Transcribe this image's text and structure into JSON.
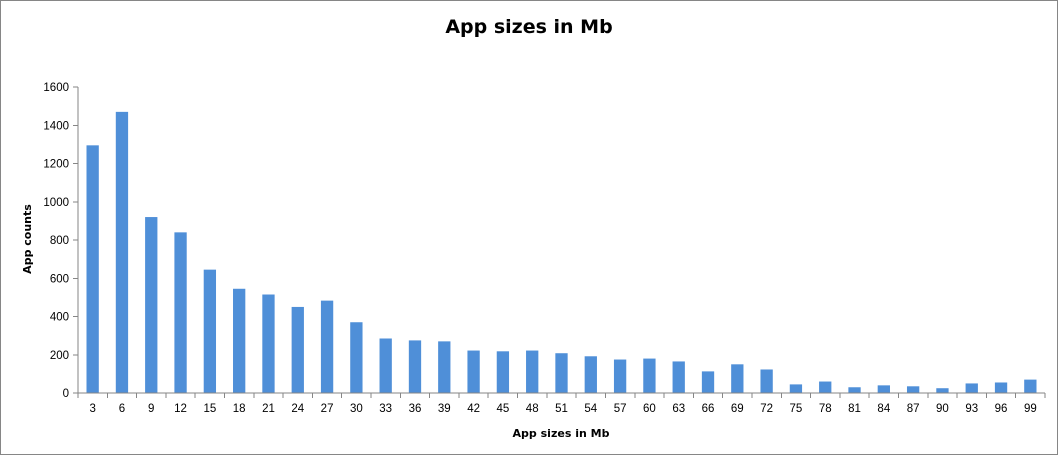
{
  "chart_data": {
    "type": "bar",
    "title": "App sizes in Mb",
    "xlabel": "App sizes in Mb",
    "ylabel": "App counts",
    "ylim": [
      0,
      1600
    ],
    "yticks": [
      "0",
      "200",
      "400",
      "600",
      "800",
      "1000",
      "1200",
      "1400",
      "1600"
    ],
    "grid": false,
    "legend": "none",
    "bar_color": "#4f8fd8",
    "categories": [
      "3",
      "6",
      "9",
      "12",
      "15",
      "18",
      "21",
      "24",
      "27",
      "30",
      "33",
      "36",
      "39",
      "42",
      "45",
      "48",
      "51",
      "54",
      "57",
      "60",
      "63",
      "66",
      "69",
      "72",
      "75",
      "78",
      "81",
      "84",
      "87",
      "90",
      "93",
      "96",
      "99"
    ],
    "values": [
      1295,
      1470,
      920,
      840,
      645,
      545,
      515,
      450,
      483,
      370,
      285,
      275,
      270,
      222,
      218,
      222,
      208,
      192,
      175,
      180,
      165,
      113,
      150,
      123,
      45,
      60,
      30,
      40,
      35,
      25,
      50,
      55,
      70
    ]
  }
}
